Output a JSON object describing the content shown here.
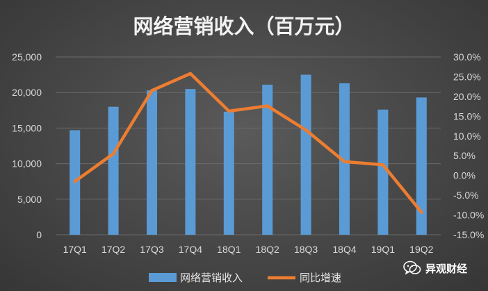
{
  "chart_data": {
    "type": "bar",
    "title": "网络营销收入（百万元）",
    "categories": [
      "17Q1",
      "17Q2",
      "17Q3",
      "17Q4",
      "18Q1",
      "18Q2",
      "18Q3",
      "18Q4",
      "19Q1",
      "19Q2"
    ],
    "series": [
      {
        "name": "网络营销收入",
        "type": "bar",
        "axis": "left",
        "color": "#5b9bd5",
        "values": [
          14700,
          18000,
          20300,
          20500,
          17300,
          21100,
          22500,
          21300,
          17600,
          19300
        ]
      },
      {
        "name": "同比增速",
        "type": "line",
        "axis": "right",
        "color": "#ed7d31",
        "values": [
          -1.5,
          5.5,
          21.5,
          25.8,
          16.3,
          17.6,
          11.5,
          3.5,
          2.7,
          -9.3
        ]
      }
    ],
    "yleft": {
      "ylim": [
        0,
        25000
      ],
      "ticks": [
        "0",
        "5,000",
        "10,000",
        "15,000",
        "20,000",
        "25,000"
      ]
    },
    "yright": {
      "ylim": [
        -15,
        30
      ],
      "ticks": [
        "-15.0%",
        "-10.0%",
        "-5.0%",
        "0.0%",
        "5.0%",
        "10.0%",
        "15.0%",
        "20.0%",
        "25.0%",
        "30.0%"
      ]
    },
    "legend": {
      "position": "bottom"
    },
    "grid": true
  },
  "watermark": {
    "text": "异观财经",
    "icon": "wechat-icon"
  }
}
